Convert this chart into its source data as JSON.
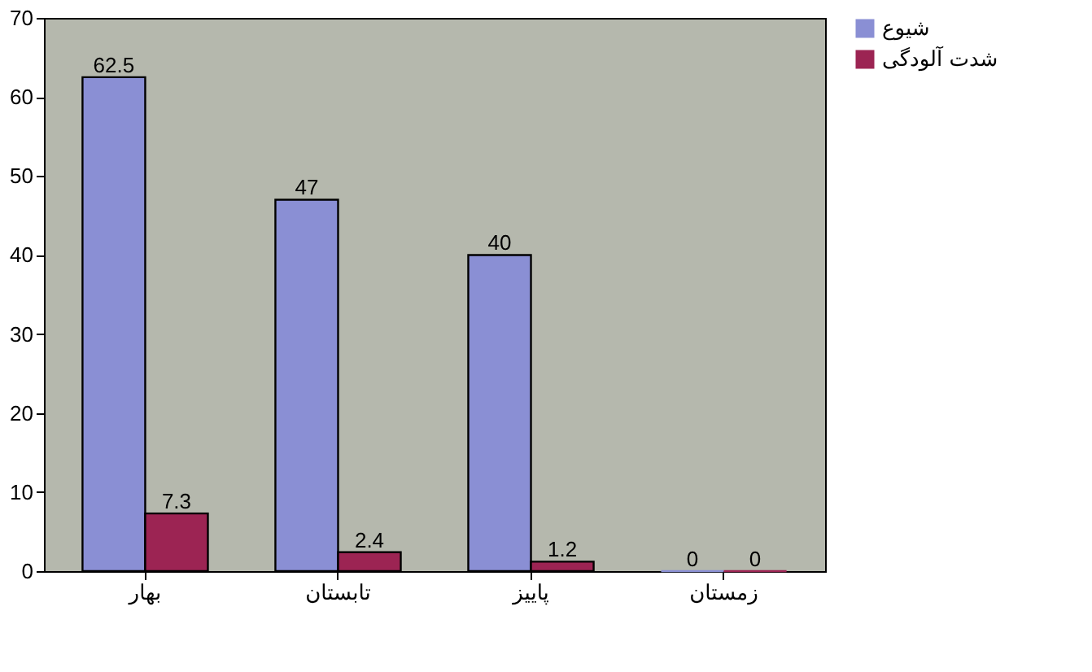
{
  "chart_data": {
    "type": "bar",
    "categories": [
      "بهار",
      "تابستان",
      "پاییز",
      "زمستان"
    ],
    "series": [
      {
        "name": "شیوع",
        "color": "#8a8fd4",
        "values": [
          62.5,
          47,
          40,
          0
        ]
      },
      {
        "name": "شدت آلودگی",
        "color": "#9c2453",
        "values": [
          7.3,
          2.4,
          1.2,
          0
        ]
      }
    ],
    "ylim": [
      0,
      70
    ],
    "yticks": [
      0,
      10,
      20,
      30,
      40,
      50,
      60,
      70
    ],
    "data_labels": true,
    "legend": "right",
    "grid": false
  }
}
